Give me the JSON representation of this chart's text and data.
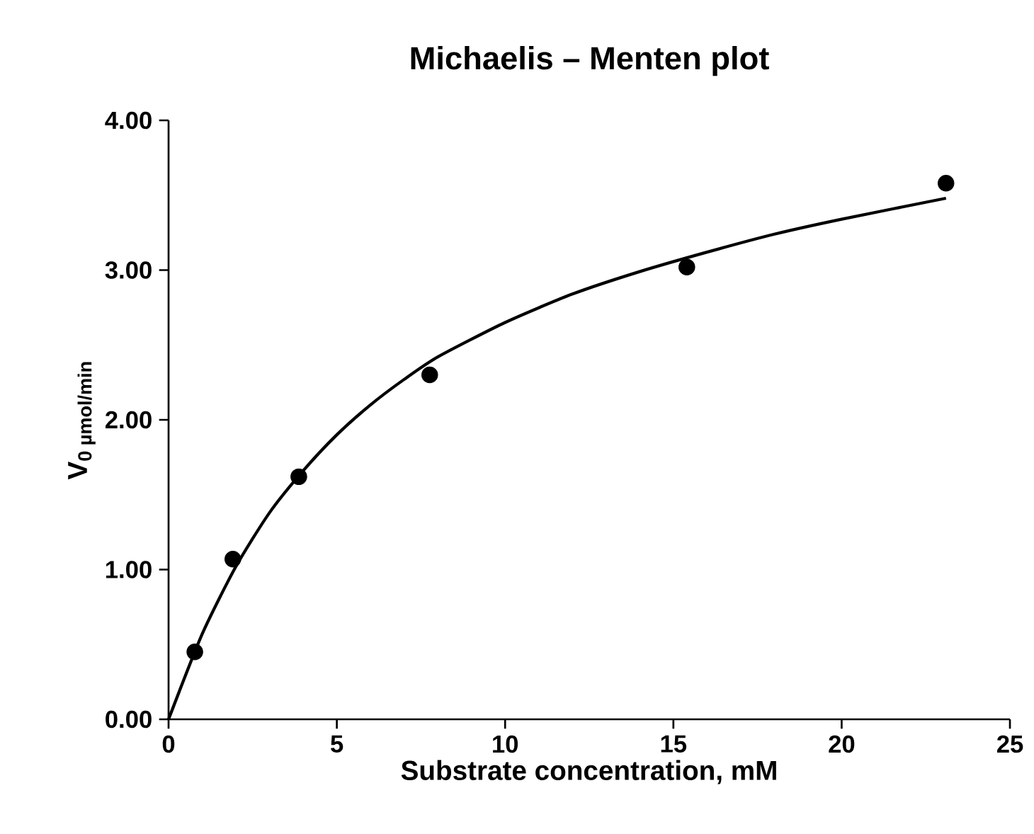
{
  "chart_data": {
    "type": "scatter",
    "title": "Michaelis –   Menten plot",
    "xlabel": "Substrate concentration, mM",
    "ylabel": "V$_{0 µmol/min}$",
    "xlim": [
      0,
      25
    ],
    "xticks": [
      0,
      5,
      10,
      15,
      20,
      25
    ],
    "ylim": [
      0,
      4
    ],
    "yticks": [
      {
        "value": 0,
        "label": "0.00"
      },
      {
        "value": 1,
        "label": "1.00"
      },
      {
        "value": 2,
        "label": "2.00"
      },
      {
        "value": 3,
        "label": "3.00"
      },
      {
        "value": 4,
        "label": "4.00"
      }
    ],
    "grid": false,
    "series": [
      {
        "color": "#000000",
        "marker": "circle",
        "x": [
          0.78,
          1.91,
          3.87,
          7.76,
          15.4,
          23.1
        ],
        "values": [
          0.45,
          1.07,
          1.62,
          2.3,
          3.02,
          3.58
        ]
      },
      {
        "type": "line",
        "color": "#000000",
        "marker": "none",
        "line_style": "solid",
        "x": [
          0,
          1,
          2,
          3,
          4,
          5,
          6,
          7,
          8,
          10,
          12,
          14,
          16,
          18,
          20,
          23.1
        ],
        "values": [
          0,
          0.57,
          1.02,
          1.38,
          1.66,
          1.9,
          2.1,
          2.27,
          2.42,
          2.65,
          2.84,
          2.99,
          3.12,
          3.24,
          3.34,
          3.48
        ]
      }
    ]
  }
}
